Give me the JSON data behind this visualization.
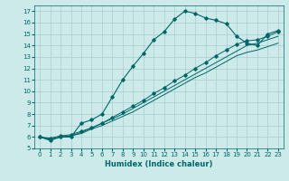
{
  "xlabel": "Humidex (Indice chaleur)",
  "ylabel": "",
  "bg_color": "#cceaea",
  "grid_color": "#aacccc",
  "line_color": "#006666",
  "xlim": [
    -0.5,
    23.5
  ],
  "ylim": [
    5,
    17.5
  ],
  "yticks": [
    5,
    6,
    7,
    8,
    9,
    10,
    11,
    12,
    13,
    14,
    15,
    16,
    17
  ],
  "xticks": [
    0,
    1,
    2,
    3,
    4,
    5,
    6,
    7,
    8,
    9,
    10,
    11,
    12,
    13,
    14,
    15,
    16,
    17,
    18,
    19,
    20,
    21,
    22,
    23
  ],
  "curve1_x": [
    0,
    1,
    2,
    3,
    4,
    5,
    6,
    7,
    8,
    9,
    10,
    11,
    12,
    13,
    14,
    15,
    16,
    17,
    18,
    19,
    20,
    21,
    22,
    23
  ],
  "curve1_y": [
    6.0,
    5.7,
    6.0,
    6.0,
    7.2,
    7.5,
    8.0,
    9.5,
    11.0,
    12.2,
    13.3,
    14.5,
    15.2,
    16.3,
    17.0,
    16.8,
    16.4,
    16.2,
    15.9,
    14.8,
    14.2,
    14.0,
    15.0,
    15.3
  ],
  "curve2_x": [
    0,
    1,
    2,
    3,
    4,
    5,
    6,
    7,
    8,
    9,
    10,
    11,
    12,
    13,
    14,
    15,
    16,
    17,
    18,
    19,
    20,
    21,
    22,
    23
  ],
  "curve2_y": [
    6.0,
    5.9,
    6.1,
    6.2,
    6.5,
    6.8,
    7.2,
    7.7,
    8.2,
    8.7,
    9.2,
    9.8,
    10.3,
    10.9,
    11.4,
    12.0,
    12.5,
    13.1,
    13.6,
    14.1,
    14.4,
    14.5,
    14.8,
    15.2
  ],
  "curve3_x": [
    0,
    1,
    2,
    3,
    4,
    5,
    6,
    7,
    8,
    9,
    10,
    11,
    12,
    13,
    14,
    15,
    16,
    17,
    18,
    19,
    20,
    21,
    22,
    23
  ],
  "curve3_y": [
    6.0,
    5.8,
    6.0,
    6.1,
    6.4,
    6.8,
    7.2,
    7.6,
    8.0,
    8.5,
    9.0,
    9.5,
    10.0,
    10.5,
    11.0,
    11.5,
    12.0,
    12.5,
    13.0,
    13.5,
    14.0,
    14.2,
    14.5,
    14.8
  ],
  "curve4_x": [
    0,
    1,
    2,
    3,
    4,
    5,
    6,
    7,
    8,
    9,
    10,
    11,
    12,
    13,
    14,
    15,
    16,
    17,
    18,
    19,
    20,
    21,
    22,
    23
  ],
  "curve4_y": [
    6.0,
    5.8,
    6.0,
    6.1,
    6.3,
    6.7,
    7.0,
    7.4,
    7.8,
    8.2,
    8.7,
    9.2,
    9.7,
    10.2,
    10.7,
    11.2,
    11.6,
    12.1,
    12.6,
    13.1,
    13.4,
    13.6,
    13.9,
    14.2
  ],
  "tick_fontsize": 5,
  "xlabel_fontsize": 6
}
